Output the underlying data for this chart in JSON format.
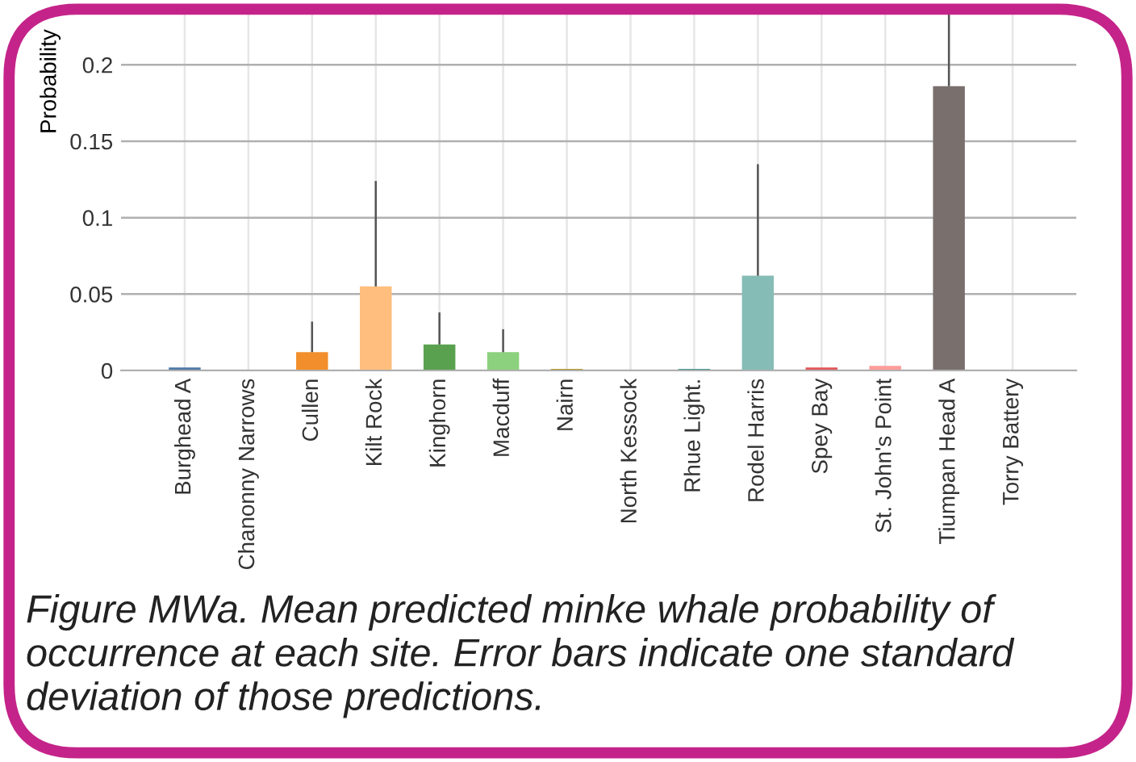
{
  "chart_data": {
    "type": "bar",
    "ylabel": "Probability",
    "categories": [
      "Burghead A",
      "Chanonny Narrows",
      "Cullen",
      "Kilt Rock",
      "Kinghorn",
      "Macduff",
      "Nairn",
      "North Kessock",
      "Rhue Light.",
      "Rodel Harris",
      "Spey Bay",
      "St. John's Point",
      "Tiumpan Head A",
      "Torry Battery"
    ],
    "values": [
      0.002,
      0,
      0.012,
      0.055,
      0.017,
      0.012,
      0.001,
      0,
      0.001,
      0.062,
      0.002,
      0.003,
      0.186,
      0
    ],
    "errors": [
      null,
      null,
      [
        0.012,
        0.032
      ],
      [
        0.055,
        0.124
      ],
      [
        0.017,
        0.038
      ],
      [
        0.012,
        0.027
      ],
      null,
      null,
      null,
      [
        0.062,
        0.135
      ],
      null,
      null,
      [
        0.186,
        0.235
      ],
      null
    ],
    "colors": [
      "#4e79a7",
      "#a0cbe8",
      "#f28e2b",
      "#ffbe7d",
      "#59a14f",
      "#8cd17d",
      "#b6992d",
      "#f1ce63",
      "#499894",
      "#86bcb6",
      "#e15759",
      "#ff9d9a",
      "#79706e",
      "#bab0ac"
    ],
    "ylim": [
      0,
      0.235
    ],
    "yticks": [
      0,
      0.05,
      0.1,
      0.15,
      0.2
    ],
    "grid": true,
    "annotations": [
      "Figure MWa. Mean predicted minke whale probability of occurrence at each site. Error bars indicate one standard deviation of those predictions."
    ]
  }
}
